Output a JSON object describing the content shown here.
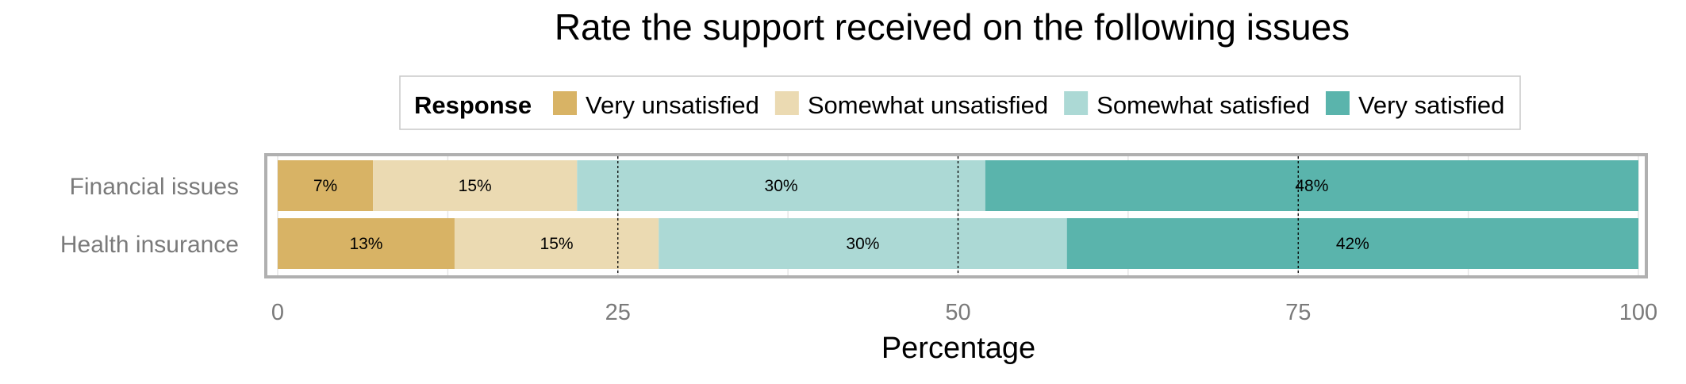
{
  "chart_data": {
    "type": "bar",
    "orientation": "horizontal",
    "stacked": true,
    "title": "Rate the support received on the following issues",
    "xlabel": "Percentage",
    "ylabel": "",
    "xlim": [
      0,
      100
    ],
    "xticks": [
      0,
      25,
      50,
      75,
      100
    ],
    "grid": true,
    "legend": {
      "title": "Response",
      "position": "top"
    },
    "categories": [
      "Financial issues",
      "Health insurance"
    ],
    "series": [
      {
        "name": "Very unsatisfied",
        "color": "#d8b365",
        "values": [
          7,
          13
        ],
        "labels": [
          "7%",
          "13%"
        ]
      },
      {
        "name": "Somewhat unsatisfied",
        "color": "#ebdab2",
        "values": [
          15,
          15
        ],
        "labels": [
          "15%",
          "15%"
        ]
      },
      {
        "name": "Somewhat satisfied",
        "color": "#acd9d5",
        "values": [
          30,
          30
        ],
        "labels": [
          "30%",
          "30%"
        ]
      },
      {
        "name": "Very satisfied",
        "color": "#5ab4ac",
        "values": [
          48,
          42
        ],
        "labels": [
          "48%",
          "42%"
        ]
      }
    ]
  }
}
